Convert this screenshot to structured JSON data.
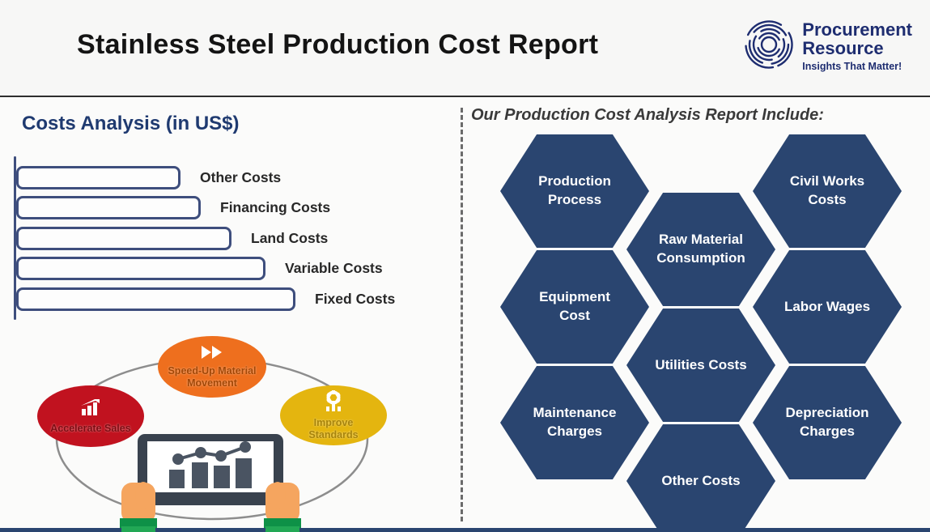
{
  "header": {
    "title": "Stainless Steel Production Cost Report",
    "logo": {
      "line1": "Procurement",
      "line2": "Resource",
      "tagline": "Insights That Matter!",
      "icon": "maze-circle-icon",
      "color": "#1e2d70"
    }
  },
  "left_panel": {
    "section_title": "Costs Analysis (in US$)",
    "illustration": {
      "bubbles": [
        {
          "label": "Accelerate Sales",
          "color": "#c1121f",
          "icon": "growth-chart-icon"
        },
        {
          "label": "Speed-Up Material Movement",
          "color": "#ee6f1e",
          "icon": "fast-forward-icon"
        },
        {
          "label": "Improve Standards",
          "color": "#e4b50f",
          "icon": "gear-icon"
        }
      ],
      "tablet": {
        "icon": "tablet-with-chart",
        "hands": "hands-holding-tablet"
      }
    }
  },
  "right_panel": {
    "section_title": "Our Production Cost Analysis Report Include:",
    "hex_color": "#2a4570",
    "hexagons": [
      {
        "label": "Production Process"
      },
      {
        "label": "Civil Works Costs"
      },
      {
        "label": "Raw Material Consumption"
      },
      {
        "label": "Equipment Cost"
      },
      {
        "label": "Labor Wages"
      },
      {
        "label": "Utilities Costs"
      },
      {
        "label": "Maintenance Charges"
      },
      {
        "label": "Depreciation Charges"
      },
      {
        "label": "Other Costs"
      }
    ]
  },
  "chart_data": {
    "type": "bar",
    "orientation": "horizontal",
    "title": "Costs Analysis (in US$)",
    "categories": [
      "Other Costs",
      "Financing Costs",
      "Land Costs",
      "Variable Costs",
      "Fixed Costs"
    ],
    "values": [
      203,
      228,
      266,
      308,
      345
    ],
    "values_note": "bars are unfilled outlines with no numeric axis; values are relative bar lengths in px, shortest to longest top to bottom",
    "bar_style": "outlined, rounded, navy border #3e4e7d",
    "grid": false,
    "legend": false
  },
  "colors": {
    "hex_navy": "#2a4570",
    "bar_border_navy": "#3e4e7d",
    "title_navy": "#1f3a70",
    "accent_red": "#c1121f",
    "accent_orange": "#ee6f1e",
    "accent_yellow": "#e4b50f",
    "sleeve_green": "#1ea24d",
    "hand_tan": "#f5a55f",
    "tablet_slate": "#39424e"
  }
}
